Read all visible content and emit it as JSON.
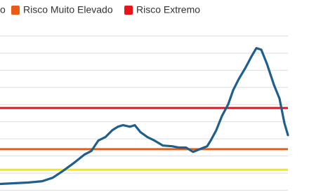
{
  "chart_data": {
    "type": "line",
    "xlim": [
      0,
      440
    ],
    "ylim": [
      -0.1,
      11.1
    ],
    "grid_lines": [
      0,
      1,
      2,
      3,
      4,
      5,
      6,
      7,
      8,
      9
    ],
    "thresholds": [
      {
        "name": "o",
        "color": "#f0e91c",
        "value": 1.2
      },
      {
        "name": "Risco Muito Elevado",
        "color": "#ea5b14",
        "value": 2.4
      },
      {
        "name": "Risco Extremo",
        "color": "#e8141c",
        "value": 4.8
      }
    ],
    "series": [
      {
        "color": "#1f5f8b",
        "x": [
          0,
          40,
          60,
          75,
          90,
          105,
          120,
          130,
          140,
          150,
          160,
          168,
          175,
          185,
          192,
          200,
          210,
          220,
          232,
          245,
          255,
          265,
          275,
          285,
          295,
          300,
          308,
          316,
          325,
          332,
          340,
          350,
          358,
          365,
          372,
          380,
          390,
          398,
          405,
          410
        ],
        "values": [
          0.37,
          0.45,
          0.53,
          0.73,
          1.14,
          1.59,
          2.08,
          2.29,
          2.9,
          3.1,
          3.51,
          3.71,
          3.8,
          3.71,
          3.8,
          3.39,
          3.1,
          2.9,
          2.61,
          2.57,
          2.49,
          2.49,
          2.24,
          2.41,
          2.57,
          2.9,
          3.51,
          4.33,
          5.02,
          5.84,
          6.49,
          7.18,
          7.8,
          8.29,
          8.2,
          7.39,
          6.16,
          5.35,
          3.92,
          3.22
        ]
      }
    ]
  }
}
